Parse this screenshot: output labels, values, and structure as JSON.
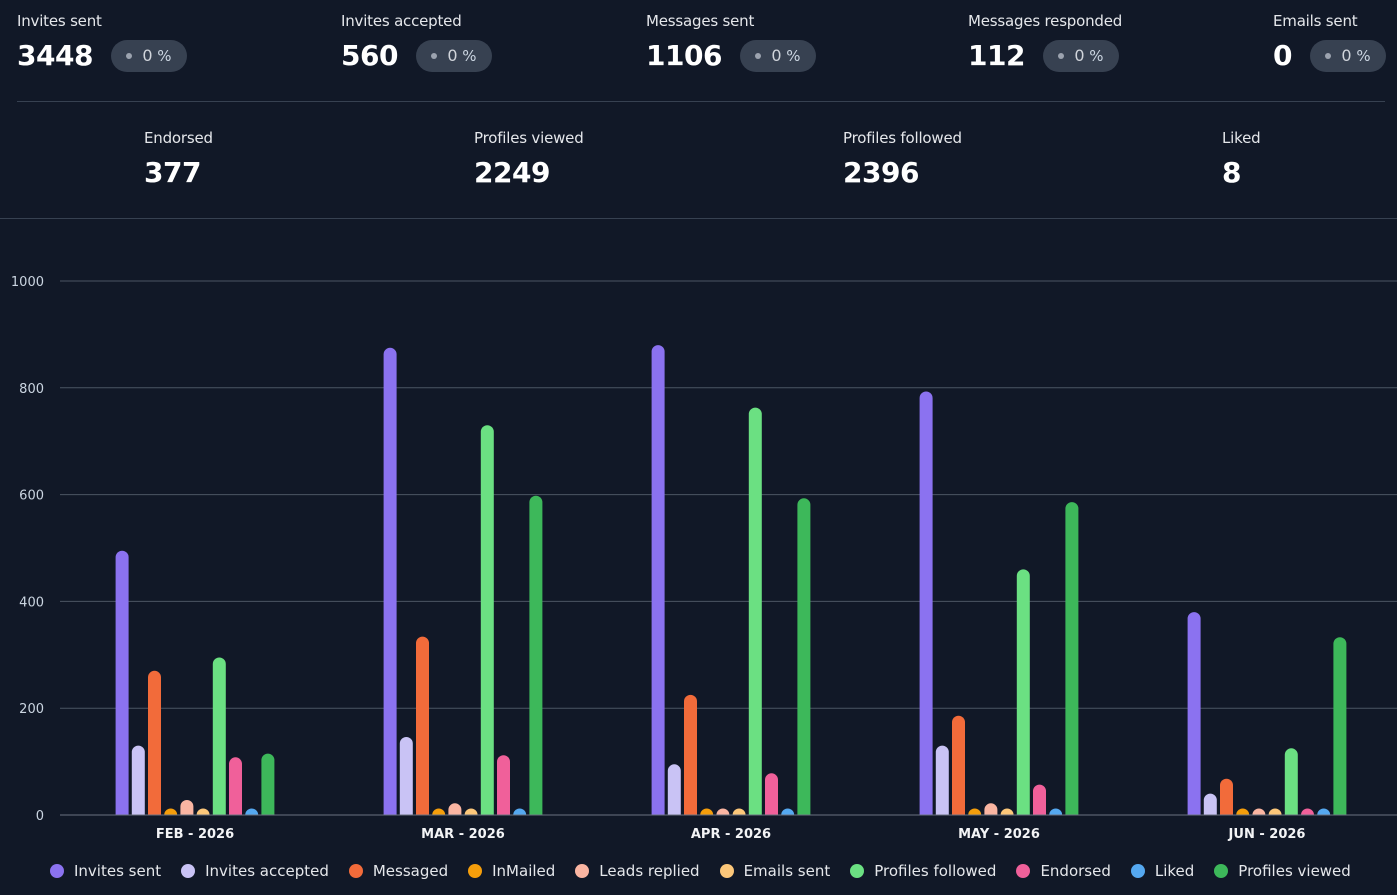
{
  "stats_top": [
    {
      "label": "Invites sent",
      "value": "3448",
      "change": "0",
      "unit": "%"
    },
    {
      "label": "Invites accepted",
      "value": "560",
      "change": "0",
      "unit": "%"
    },
    {
      "label": "Messages sent",
      "value": "1106",
      "change": "0",
      "unit": "%"
    },
    {
      "label": "Messages responded",
      "value": "112",
      "change": "0",
      "unit": "%"
    },
    {
      "label": "Emails sent",
      "value": "0",
      "change": "0",
      "unit": "%"
    }
  ],
  "stats_bottom": [
    {
      "label": "Endorsed",
      "value": "377"
    },
    {
      "label": "Profiles viewed",
      "value": "2249"
    },
    {
      "label": "Profiles followed",
      "value": "2396"
    },
    {
      "label": "Liked",
      "value": "8"
    }
  ],
  "chart_data": {
    "type": "bar",
    "categories": [
      "FEB - 2026",
      "MAR - 2026",
      "APR - 2026",
      "MAY - 2026",
      "JUN - 2026"
    ],
    "ylim": [
      0,
      1000
    ],
    "yticks": [
      0,
      200,
      400,
      600,
      800,
      1000
    ],
    "grid": true,
    "legend_position": "bottom",
    "series": [
      {
        "name": "Invites sent",
        "color": "#8b72f0",
        "values": [
          495,
          875,
          880,
          793,
          380
        ]
      },
      {
        "name": "Invites accepted",
        "color": "#c9c3f5",
        "values": [
          130,
          146,
          95,
          130,
          40
        ]
      },
      {
        "name": "Messaged",
        "color": "#f26b3a",
        "values": [
          270,
          334,
          225,
          186,
          68
        ]
      },
      {
        "name": "InMailed",
        "color": "#f59e0b",
        "values": [
          8,
          8,
          8,
          8,
          8
        ]
      },
      {
        "name": "Leads replied",
        "color": "#fab5a2",
        "values": [
          28,
          22,
          12,
          22,
          8
        ]
      },
      {
        "name": "Emails sent",
        "color": "#fcc77a",
        "values": [
          8,
          8,
          8,
          8,
          8
        ]
      },
      {
        "name": "Profiles followed",
        "color": "#6be082",
        "values": [
          295,
          730,
          763,
          460,
          125
        ]
      },
      {
        "name": "Endorsed",
        "color": "#f0609a",
        "values": [
          108,
          112,
          78,
          57,
          8
        ]
      },
      {
        "name": "Liked",
        "color": "#55a8f0",
        "values": [
          8,
          8,
          8,
          8,
          8
        ]
      },
      {
        "name": "Profiles viewed",
        "color": "#3db85a",
        "values": [
          115,
          598,
          593,
          586,
          333
        ]
      }
    ]
  }
}
